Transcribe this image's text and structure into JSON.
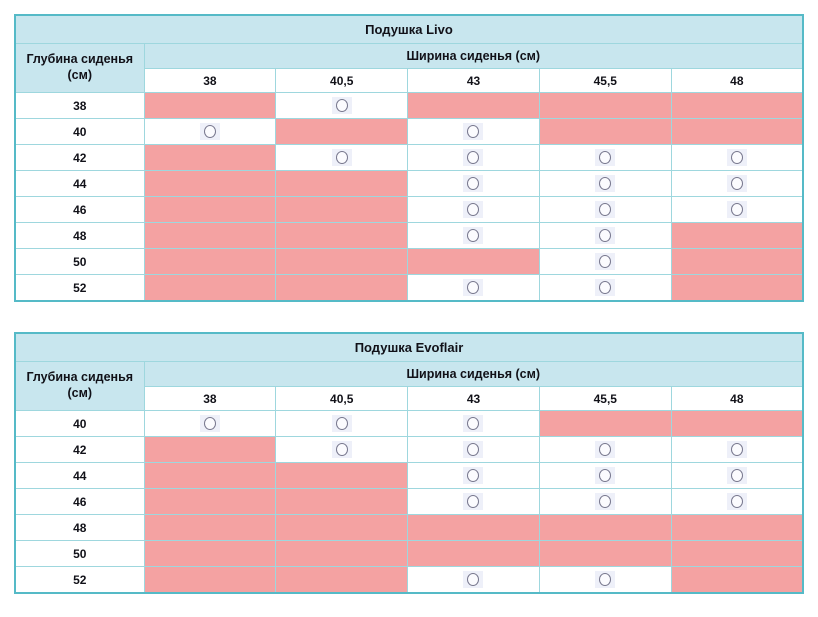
{
  "page": {
    "background": "#ffffff",
    "language": "ru"
  },
  "colors": {
    "header_bg": "#c8e6ee",
    "unavailable_cell": "#f4a2a2",
    "available_cell": "#ffffff",
    "outer_border": "#55bac7",
    "inner_border": "#9ed7de",
    "circle_stroke": "#78788e",
    "circle_fill": "#fbfbfe",
    "text": "#111118"
  },
  "cell_states_legend": {
    "ok": "available (outlined circle marker)",
    "na": "unavailable (pink filled cell)"
  },
  "tables": [
    {
      "title": "Подушка Livo",
      "depth_header": "Глубина сиденья (см)",
      "width_header": "Ширина сиденья (см)",
      "width_columns": [
        "38",
        "40,5",
        "43",
        "45,5",
        "48"
      ],
      "rows": [
        {
          "depth": "38",
          "cells": [
            "na",
            "ok",
            "na",
            "na",
            "na"
          ]
        },
        {
          "depth": "40",
          "cells": [
            "ok",
            "na",
            "ok",
            "na",
            "na"
          ]
        },
        {
          "depth": "42",
          "cells": [
            "na",
            "ok",
            "ok",
            "ok",
            "ok"
          ]
        },
        {
          "depth": "44",
          "cells": [
            "na",
            "na",
            "ok",
            "ok",
            "ok"
          ]
        },
        {
          "depth": "46",
          "cells": [
            "na",
            "na",
            "ok",
            "ok",
            "ok"
          ]
        },
        {
          "depth": "48",
          "cells": [
            "na",
            "na",
            "ok",
            "ok",
            "na"
          ]
        },
        {
          "depth": "50",
          "cells": [
            "na",
            "na",
            "na",
            "ok",
            "na"
          ]
        },
        {
          "depth": "52",
          "cells": [
            "na",
            "na",
            "ok",
            "ok",
            "na"
          ]
        }
      ]
    },
    {
      "title": "Подушка Evoflair",
      "depth_header": "Глубина сиденья (см)",
      "width_header": "Ширина сиденья (см)",
      "width_columns": [
        "38",
        "40,5",
        "43",
        "45,5",
        "48"
      ],
      "rows": [
        {
          "depth": "40",
          "cells": [
            "ok",
            "ok",
            "ok",
            "na",
            "na"
          ]
        },
        {
          "depth": "42",
          "cells": [
            "na",
            "ok",
            "ok",
            "ok",
            "ok"
          ]
        },
        {
          "depth": "44",
          "cells": [
            "na",
            "na",
            "ok",
            "ok",
            "ok"
          ]
        },
        {
          "depth": "46",
          "cells": [
            "na",
            "na",
            "ok",
            "ok",
            "ok"
          ]
        },
        {
          "depth": "48",
          "cells": [
            "na",
            "na",
            "na",
            "na",
            "na"
          ]
        },
        {
          "depth": "50",
          "cells": [
            "na",
            "na",
            "na",
            "na",
            "na"
          ]
        },
        {
          "depth": "52",
          "cells": [
            "na",
            "na",
            "ok",
            "ok",
            "na"
          ]
        }
      ]
    }
  ]
}
